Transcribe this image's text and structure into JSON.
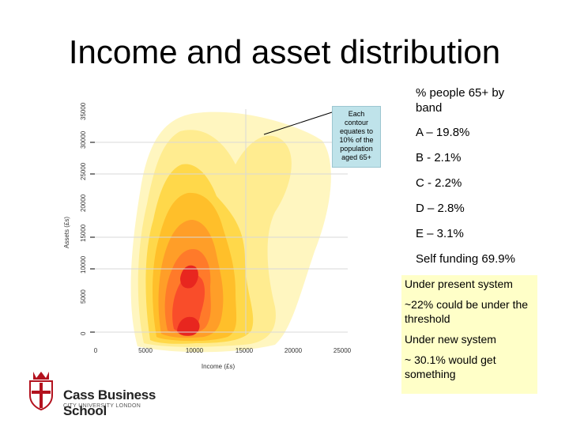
{
  "slide": {
    "title": "Income and asset distribution"
  },
  "chart": {
    "callout": [
      "Each",
      "contour",
      "equates to",
      "10% of the",
      "population",
      "aged 65+"
    ],
    "x_ticks": [
      "0",
      "5000",
      "10000",
      "15000",
      "20000",
      "25000"
    ],
    "y_ticks": [
      "0",
      "5000",
      "10000",
      "15000",
      "20000",
      "25000",
      "30000",
      "35000"
    ],
    "xlabel": "Income (£s)",
    "ylabel": "Assets (£s)",
    "colors": {
      "contour_1": "#fff6c0",
      "contour_2": "#ffec90",
      "contour_3": "#ffd84a",
      "contour_4": "#ffbf2a",
      "contour_5": "#ff9e28",
      "contour_6": "#ff7a2a",
      "contour_7": "#f94d2a",
      "contour_8": "#e8261f"
    }
  },
  "stats": {
    "header": [
      "% people 65+ by",
      "band"
    ],
    "bands": [
      "A – 19.8%",
      "B - 2.1%",
      "C - 2.2%",
      "D – 2.8%",
      "E – 3.1%",
      "Self funding 69.9%"
    ]
  },
  "note": {
    "lines": [
      "Under present system",
      "~22% could be under the threshold",
      "Under new system",
      "~ 30.1% would get something"
    ]
  },
  "logo": {
    "name": "Cass Business School",
    "subtitle": "CITY UNIVERSITY LONDON"
  }
}
